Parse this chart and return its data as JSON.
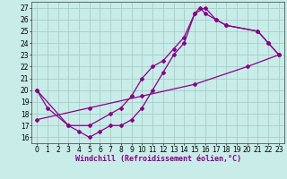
{
  "xlabel": "Windchill (Refroidissement éolien,°C)",
  "bg_color": "#c8ece8",
  "grid_color": "#a0c8c4",
  "line_color": "#880088",
  "xlim": [
    -0.5,
    23.5
  ],
  "ylim": [
    15.5,
    27.5
  ],
  "xticks": [
    0,
    1,
    2,
    3,
    4,
    5,
    6,
    7,
    8,
    9,
    10,
    11,
    12,
    13,
    14,
    15,
    16,
    17,
    18,
    19,
    20,
    21,
    22,
    23
  ],
  "yticks": [
    16,
    17,
    18,
    19,
    20,
    21,
    22,
    23,
    24,
    25,
    26,
    27
  ],
  "line1_x": [
    0,
    1,
    3,
    4,
    5,
    6,
    7,
    8,
    9,
    10,
    11,
    12,
    13,
    14,
    15,
    15.5,
    16,
    17,
    18,
    21,
    22,
    23
  ],
  "line1_y": [
    20.0,
    18.5,
    17.0,
    16.5,
    16.0,
    16.5,
    17.0,
    17.0,
    17.5,
    18.5,
    20.0,
    21.5,
    23.0,
    24.0,
    26.5,
    27.0,
    26.5,
    26.0,
    25.5,
    25.0,
    24.0,
    23.0
  ],
  "line2_x": [
    0,
    3,
    5,
    7,
    8,
    9,
    10,
    11,
    12,
    13,
    14,
    15,
    16,
    17,
    18,
    21,
    22,
    23
  ],
  "line2_y": [
    20.0,
    17.0,
    17.0,
    18.0,
    18.5,
    19.5,
    21.0,
    22.0,
    22.5,
    23.5,
    24.5,
    26.5,
    27.0,
    26.0,
    25.5,
    25.0,
    24.0,
    23.0
  ],
  "line3_x": [
    0,
    5,
    10,
    15,
    20,
    23
  ],
  "line3_y": [
    17.5,
    18.5,
    19.5,
    20.5,
    22.0,
    23.0
  ],
  "marker": "D",
  "marker_size": 2.0,
  "line_width": 0.9,
  "xlabel_fontsize": 6.0,
  "tick_fontsize": 5.5
}
